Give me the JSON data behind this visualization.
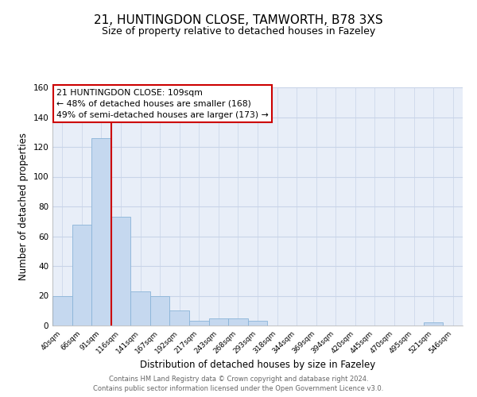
{
  "title1": "21, HUNTINGDON CLOSE, TAMWORTH, B78 3XS",
  "title2": "Size of property relative to detached houses in Fazeley",
  "xlabel": "Distribution of detached houses by size in Fazeley",
  "ylabel": "Number of detached properties",
  "bar_values": [
    20,
    68,
    126,
    73,
    23,
    20,
    10,
    3,
    5,
    5,
    3,
    0,
    0,
    0,
    0,
    0,
    0,
    0,
    0,
    2,
    0
  ],
  "bar_labels": [
    "40sqm",
    "66sqm",
    "91sqm",
    "116sqm",
    "141sqm",
    "167sqm",
    "192sqm",
    "217sqm",
    "243sqm",
    "268sqm",
    "293sqm",
    "318sqm",
    "344sqm",
    "369sqm",
    "394sqm",
    "420sqm",
    "445sqm",
    "470sqm",
    "495sqm",
    "521sqm",
    "546sqm"
  ],
  "bar_color": "#c5d8ef",
  "bar_edge_color": "#8ab4d8",
  "ylim": [
    0,
    160
  ],
  "yticks": [
    0,
    20,
    40,
    60,
    80,
    100,
    120,
    140,
    160
  ],
  "property_line_x": 2.5,
  "property_line_color": "#cc0000",
  "annotation_text": "21 HUNTINGDON CLOSE: 109sqm\n← 48% of detached houses are smaller (168)\n49% of semi-detached houses are larger (173) →",
  "annotation_box_color": "#ffffff",
  "annotation_box_edge": "#cc0000",
  "footer1": "Contains HM Land Registry data © Crown copyright and database right 2024.",
  "footer2": "Contains public sector information licensed under the Open Government Licence v3.0.",
  "bg_color": "#e8eef8",
  "grid_color": "#c8d4e8"
}
